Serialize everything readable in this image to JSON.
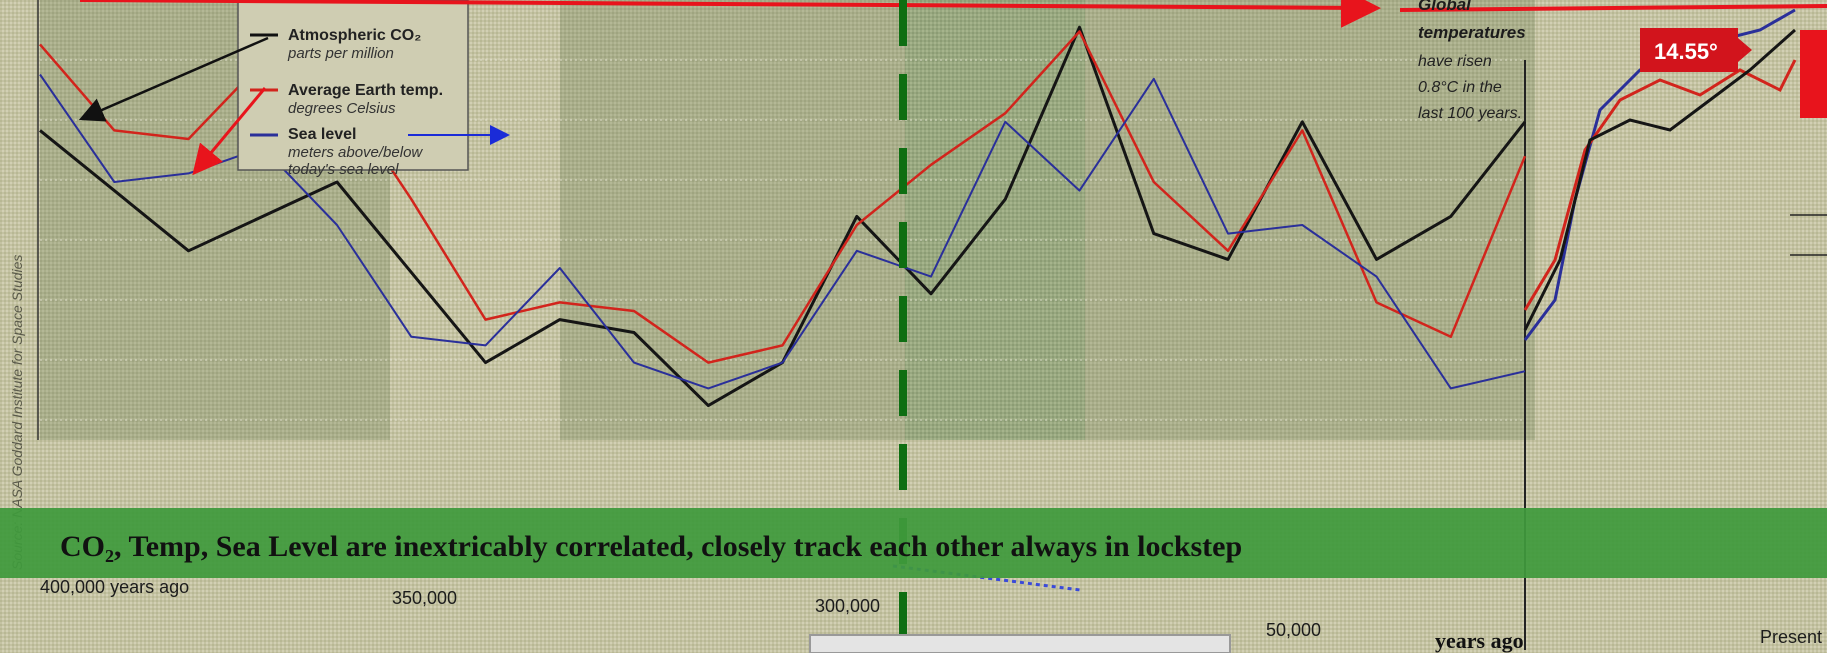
{
  "source_note": "Source: NASA Goddard Institute for Space Studies",
  "legend": {
    "co2_title": "Atmospheric CO₂",
    "co2_sub": "parts per million",
    "temp_title": "Average Earth temp.",
    "temp_sub": "degrees Celsius",
    "sea_title": "Sea level",
    "sea_sub1": "meters above/below",
    "sea_sub2": "today's sea level"
  },
  "annotation": {
    "line1": "Global",
    "line2": "temperatures",
    "line3": "have risen",
    "line4": "0.8°C in the",
    "line5": "last 100 years."
  },
  "temp_badge": "14.55°",
  "banner": "CO₂, Temp, Sea Level are inextricably correlated, closely track each other always in lockstep",
  "colors": {
    "co2": "#151515",
    "temp": "#d2241c",
    "sea": "#2a2f9a",
    "banner": "#3f9a3c",
    "dashed_divider": "#0e6e12",
    "arrow": "#e8141c",
    "badge": "#d2141c"
  },
  "chart_data": {
    "type": "line",
    "x_axis_ticks": [
      "400,000 years ago",
      "350,000",
      "300,000",
      "50,000",
      "Present"
    ],
    "x_label": "years ago",
    "series": [
      {
        "name": "Atmospheric CO₂",
        "values": [
          [
            0,
            0.72
          ],
          [
            0.05,
            0.58
          ],
          [
            0.1,
            0.44
          ],
          [
            0.2,
            0.6
          ],
          [
            0.3,
            0.18
          ],
          [
            0.35,
            0.28
          ],
          [
            0.4,
            0.25
          ],
          [
            0.45,
            0.08
          ],
          [
            0.5,
            0.18
          ],
          [
            0.55,
            0.52
          ],
          [
            0.6,
            0.34
          ],
          [
            0.65,
            0.56
          ],
          [
            0.7,
            0.96
          ],
          [
            0.75,
            0.48
          ],
          [
            0.8,
            0.42
          ],
          [
            0.85,
            0.74
          ],
          [
            0.9,
            0.42
          ],
          [
            0.95,
            0.52
          ],
          [
            1,
            0.74
          ]
        ]
      },
      {
        "name": "Average Earth temp.",
        "values": [
          [
            0,
            0.92
          ],
          [
            0.05,
            0.72
          ],
          [
            0.1,
            0.7
          ],
          [
            0.15,
            0.88
          ],
          [
            0.2,
            0.82
          ],
          [
            0.25,
            0.56
          ],
          [
            0.3,
            0.28
          ],
          [
            0.35,
            0.32
          ],
          [
            0.4,
            0.3
          ],
          [
            0.45,
            0.18
          ],
          [
            0.5,
            0.22
          ],
          [
            0.55,
            0.5
          ],
          [
            0.6,
            0.64
          ],
          [
            0.65,
            0.76
          ],
          [
            0.7,
            0.95
          ],
          [
            0.75,
            0.6
          ],
          [
            0.8,
            0.44
          ],
          [
            0.85,
            0.72
          ],
          [
            0.9,
            0.32
          ],
          [
            0.95,
            0.24
          ],
          [
            1,
            0.66
          ]
        ]
      },
      {
        "name": "Sea level",
        "values": [
          [
            0,
            0.85
          ],
          [
            0.05,
            0.6
          ],
          [
            0.1,
            0.62
          ],
          [
            0.15,
            0.68
          ],
          [
            0.2,
            0.5
          ],
          [
            0.25,
            0.24
          ],
          [
            0.3,
            0.22
          ],
          [
            0.35,
            0.4
          ],
          [
            0.4,
            0.18
          ],
          [
            0.45,
            0.12
          ],
          [
            0.5,
            0.18
          ],
          [
            0.55,
            0.44
          ],
          [
            0.6,
            0.38
          ],
          [
            0.65,
            0.74
          ],
          [
            0.7,
            0.58
          ],
          [
            0.75,
            0.84
          ],
          [
            0.8,
            0.48
          ],
          [
            0.85,
            0.5
          ],
          [
            0.9,
            0.38
          ],
          [
            0.95,
            0.12
          ],
          [
            1,
            0.16
          ]
        ]
      }
    ]
  }
}
